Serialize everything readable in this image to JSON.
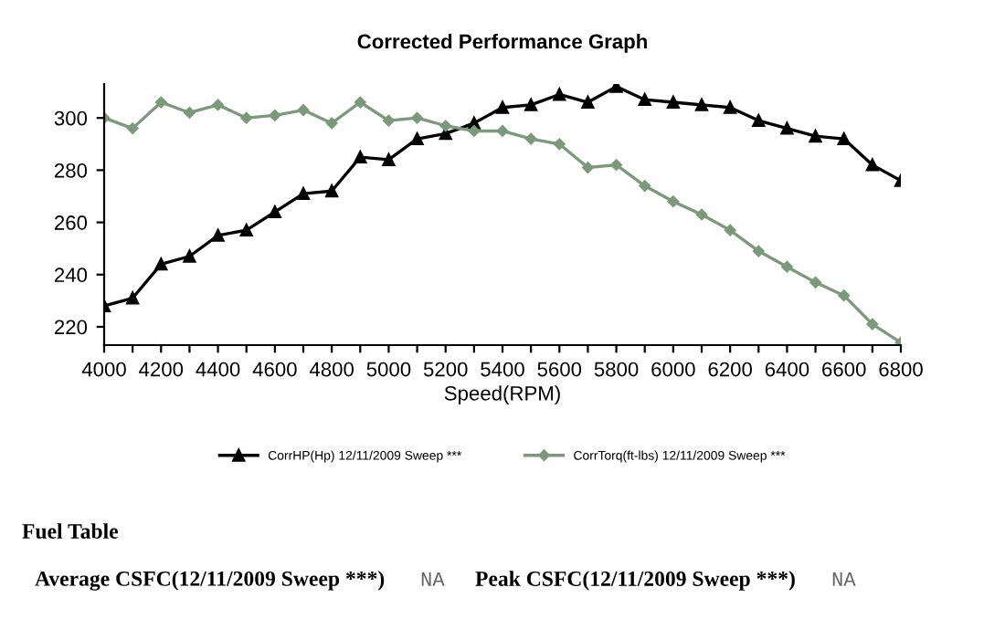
{
  "chart_data": {
    "type": "line",
    "title": "Corrected Performance Graph",
    "xlabel": "Speed(RPM)",
    "x": [
      4000,
      4100,
      4200,
      4300,
      4400,
      4500,
      4600,
      4700,
      4800,
      4900,
      5000,
      5100,
      5200,
      5300,
      5400,
      5500,
      5600,
      5700,
      5800,
      5900,
      6000,
      6100,
      6200,
      6300,
      6400,
      6500,
      6600,
      6700,
      6800
    ],
    "series": [
      {
        "name": "CorrHP(Hp) 12/11/2009 Sweep ***",
        "color": "#000000",
        "marker": "triangle",
        "values": [
          228,
          231,
          244,
          247,
          255,
          257,
          264,
          271,
          272,
          285,
          284,
          292,
          294,
          298,
          304,
          305,
          309,
          306,
          312,
          307,
          306,
          305,
          304,
          299,
          296,
          293,
          292,
          282,
          276
        ]
      },
      {
        "name": "CorrTorq(ft-lbs) 12/11/2009 Sweep ***",
        "color": "#7a9a7a",
        "marker": "diamond",
        "values": [
          300,
          296,
          306,
          302,
          305,
          300,
          301,
          303,
          298,
          306,
          299,
          300,
          297,
          295,
          295,
          292,
          290,
          281,
          282,
          274,
          268,
          263,
          257,
          249,
          243,
          237,
          232,
          221,
          214
        ]
      }
    ],
    "xlim": [
      4000,
      6800
    ],
    "xticks": [
      4000,
      {
        "value": 4100,
        "label": null
      },
      4200,
      {
        "value": 4300,
        "label": null
      },
      4400,
      {
        "value": 4500,
        "label": null
      },
      4600,
      {
        "value": 4700,
        "label": null
      },
      4800,
      {
        "value": 4900,
        "label": null
      },
      5000,
      {
        "value": 5100,
        "label": null
      },
      5200,
      {
        "value": 5300,
        "label": null
      },
      5400,
      {
        "value": 5500,
        "label": null
      },
      5600,
      {
        "value": 5700,
        "label": null
      },
      5800,
      {
        "value": 5900,
        "label": null
      },
      6000,
      {
        "value": 6100,
        "label": null
      },
      6200,
      {
        "value": 6300,
        "label": null
      },
      6400,
      {
        "value": 6500,
        "label": null
      },
      6600,
      {
        "value": 6700,
        "label": null
      },
      6800
    ],
    "ylim": [
      213,
      313
    ],
    "yticks": [
      220,
      240,
      260,
      280,
      300
    ],
    "legend": "bottom",
    "annotations": [
      "Fuel Table",
      "Average CSFC(12/11/2009 Sweep ***)",
      "NA",
      "Peak CSFC(12/11/2009 Sweep ***)",
      "NA"
    ]
  }
}
